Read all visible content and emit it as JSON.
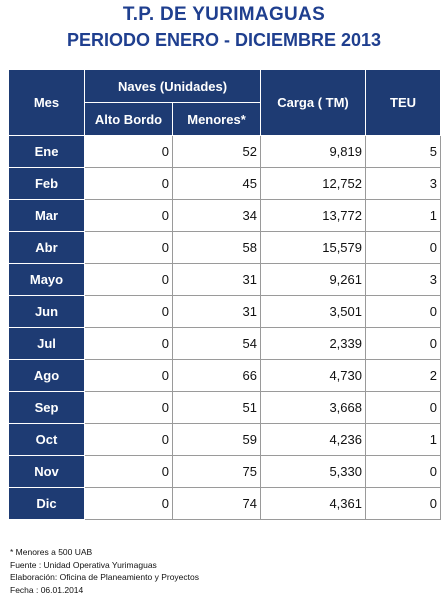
{
  "title": "T.P. DE YURIMAGUAS",
  "subtitle": "PERIODO ENERO - DICIEMBRE 2013",
  "headers": {
    "mes": "Mes",
    "naves": "Naves (Unidades)",
    "alto_bordo": "Alto Bordo",
    "menores": "Menores*",
    "carga": "Carga ( TM)",
    "teu": "TEU"
  },
  "rows": [
    {
      "mes": "Ene",
      "alto_bordo": "0",
      "menores": "52",
      "carga": "9,819",
      "teu": "5"
    },
    {
      "mes": "Feb",
      "alto_bordo": "0",
      "menores": "45",
      "carga": "12,752",
      "teu": "3"
    },
    {
      "mes": "Mar",
      "alto_bordo": "0",
      "menores": "34",
      "carga": "13,772",
      "teu": "1"
    },
    {
      "mes": "Abr",
      "alto_bordo": "0",
      "menores": "58",
      "carga": "15,579",
      "teu": "0"
    },
    {
      "mes": "Mayo",
      "alto_bordo": "0",
      "menores": "31",
      "carga": "9,261",
      "teu": "3"
    },
    {
      "mes": "Jun",
      "alto_bordo": "0",
      "menores": "31",
      "carga": "3,501",
      "teu": "0"
    },
    {
      "mes": "Jul",
      "alto_bordo": "0",
      "menores": "54",
      "carga": "2,339",
      "teu": "0"
    },
    {
      "mes": "Ago",
      "alto_bordo": "0",
      "menores": "66",
      "carga": "4,730",
      "teu": "2"
    },
    {
      "mes": "Sep",
      "alto_bordo": "0",
      "menores": "51",
      "carga": "3,668",
      "teu": "0"
    },
    {
      "mes": "Oct",
      "alto_bordo": "0",
      "menores": "59",
      "carga": "4,236",
      "teu": "1"
    },
    {
      "mes": "Nov",
      "alto_bordo": "0",
      "menores": "75",
      "carga": "5,330",
      "teu": "0"
    },
    {
      "mes": "Dic",
      "alto_bordo": "0",
      "menores": "74",
      "carga": "4,361",
      "teu": "0"
    }
  ],
  "notes": [
    "* Menores a 500 UAB",
    "Fuente : Unidad Operativa Yurimaguas",
    "Elaboración: Oficina de Planeamiento y Proyectos",
    "Fecha : 06.01.2014"
  ],
  "colors": {
    "title": "#1f3f8f",
    "header_bg": "#1e3b73"
  }
}
